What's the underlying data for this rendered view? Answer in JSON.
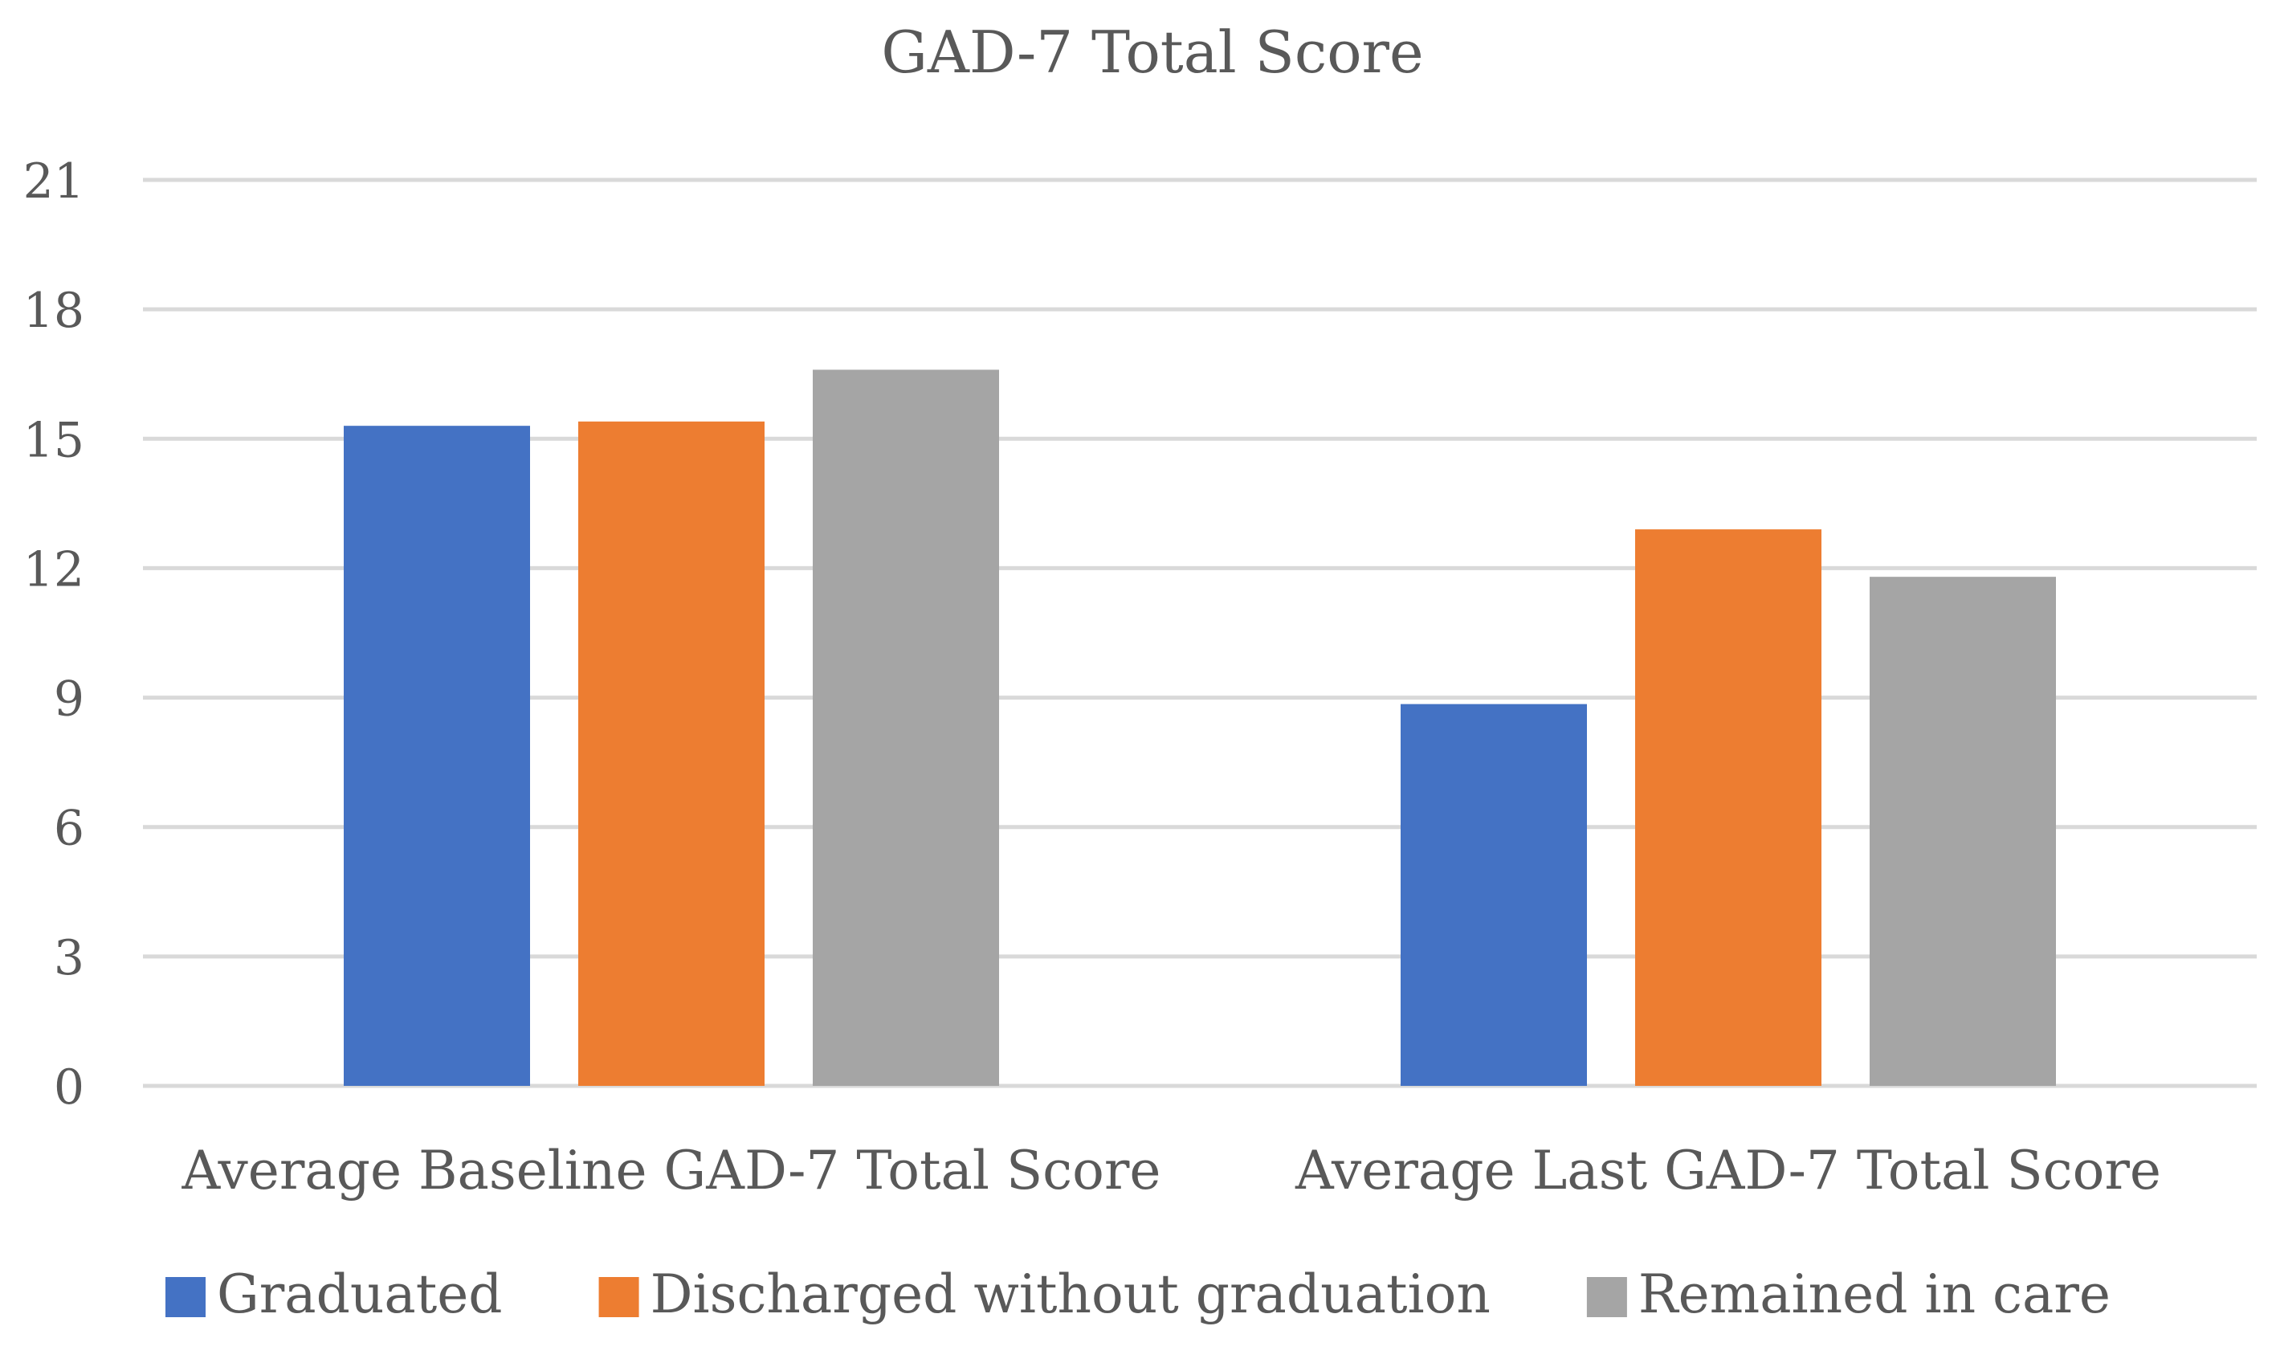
{
  "chart_data": {
    "type": "bar",
    "title": "GAD-7 Total Score",
    "xlabel": "",
    "ylabel": "",
    "categories": [
      "Average Baseline GAD-7 Total Score",
      "Average Last GAD-7 Total Score"
    ],
    "series": [
      {
        "name": "Graduated",
        "color": "#4472c4",
        "values": [
          15.3,
          8.85
        ]
      },
      {
        "name": "Discharged without graduation",
        "color": "#ed7d31",
        "values": [
          15.4,
          12.9
        ]
      },
      {
        "name": "Remained in care",
        "color": "#a5a5a5",
        "values": [
          16.6,
          11.8
        ]
      }
    ],
    "ylim": [
      0,
      21
    ],
    "yticks": [
      0,
      3,
      6,
      9,
      12,
      15,
      18,
      21
    ],
    "grid": true,
    "legend_position": "bottom"
  }
}
